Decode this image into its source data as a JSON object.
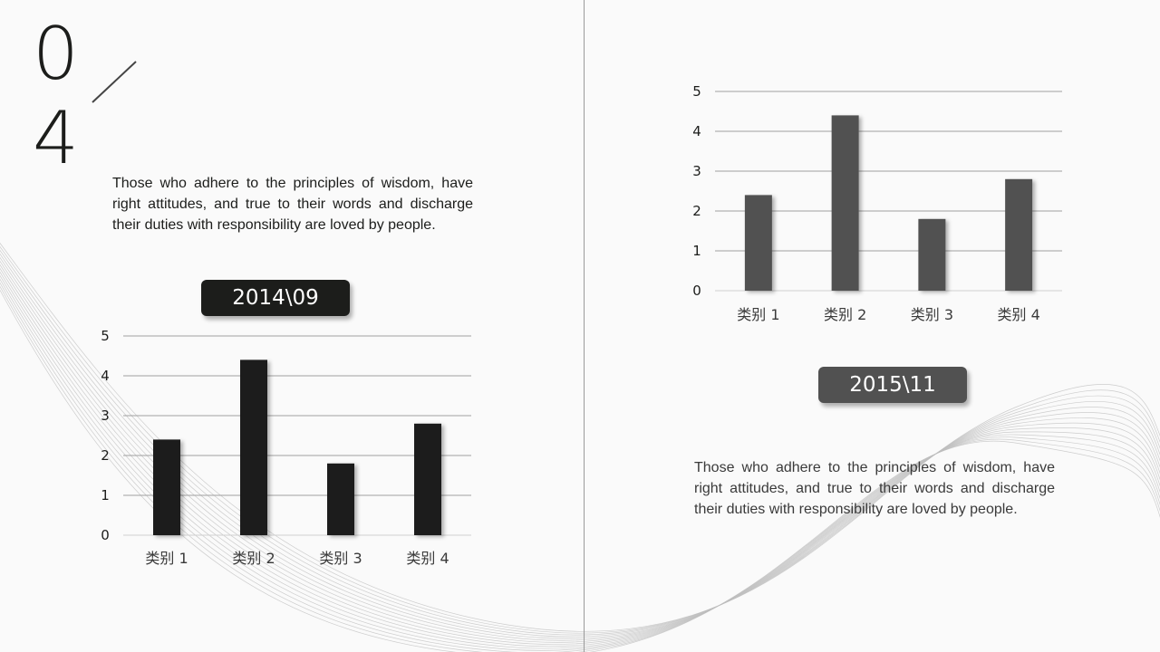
{
  "slide": {
    "number_top": "0",
    "number_bottom": "4",
    "paragraph_1": "Those who adhere to the principles of wisdom, have right attitudes, and true to their words and discharge their duties with responsibility are loved by people.",
    "paragraph_2": "Those who adhere to the principles of wisdom, have right attitudes, and true to their words and discharge their duties with responsibility are loved by people.",
    "badge_1": "2014\\09",
    "badge_2": "2015\\11"
  },
  "colors": {
    "chart_1_bar": "#1c1d1b",
    "chart_2_bar": "#515151",
    "badge_1": "#1c1d1b",
    "badge_2": "#515151",
    "background": "#fafafa"
  },
  "chart_data": [
    {
      "type": "bar",
      "categories": [
        "类别 1",
        "类别 2",
        "类别 3",
        "类别 4"
      ],
      "values": [
        2.4,
        4.4,
        1.8,
        2.8
      ],
      "ylim": [
        0,
        5
      ],
      "yticks": [
        0,
        1,
        2,
        3,
        4,
        5
      ],
      "grid": true,
      "legend": "none"
    },
    {
      "type": "bar",
      "categories": [
        "类别 1",
        "类别 2",
        "类别 3",
        "类别 4"
      ],
      "values": [
        2.4,
        4.4,
        1.8,
        2.8
      ],
      "ylim": [
        0,
        5
      ],
      "yticks": [
        0,
        1,
        2,
        3,
        4,
        5
      ],
      "grid": true,
      "legend": "none"
    }
  ]
}
